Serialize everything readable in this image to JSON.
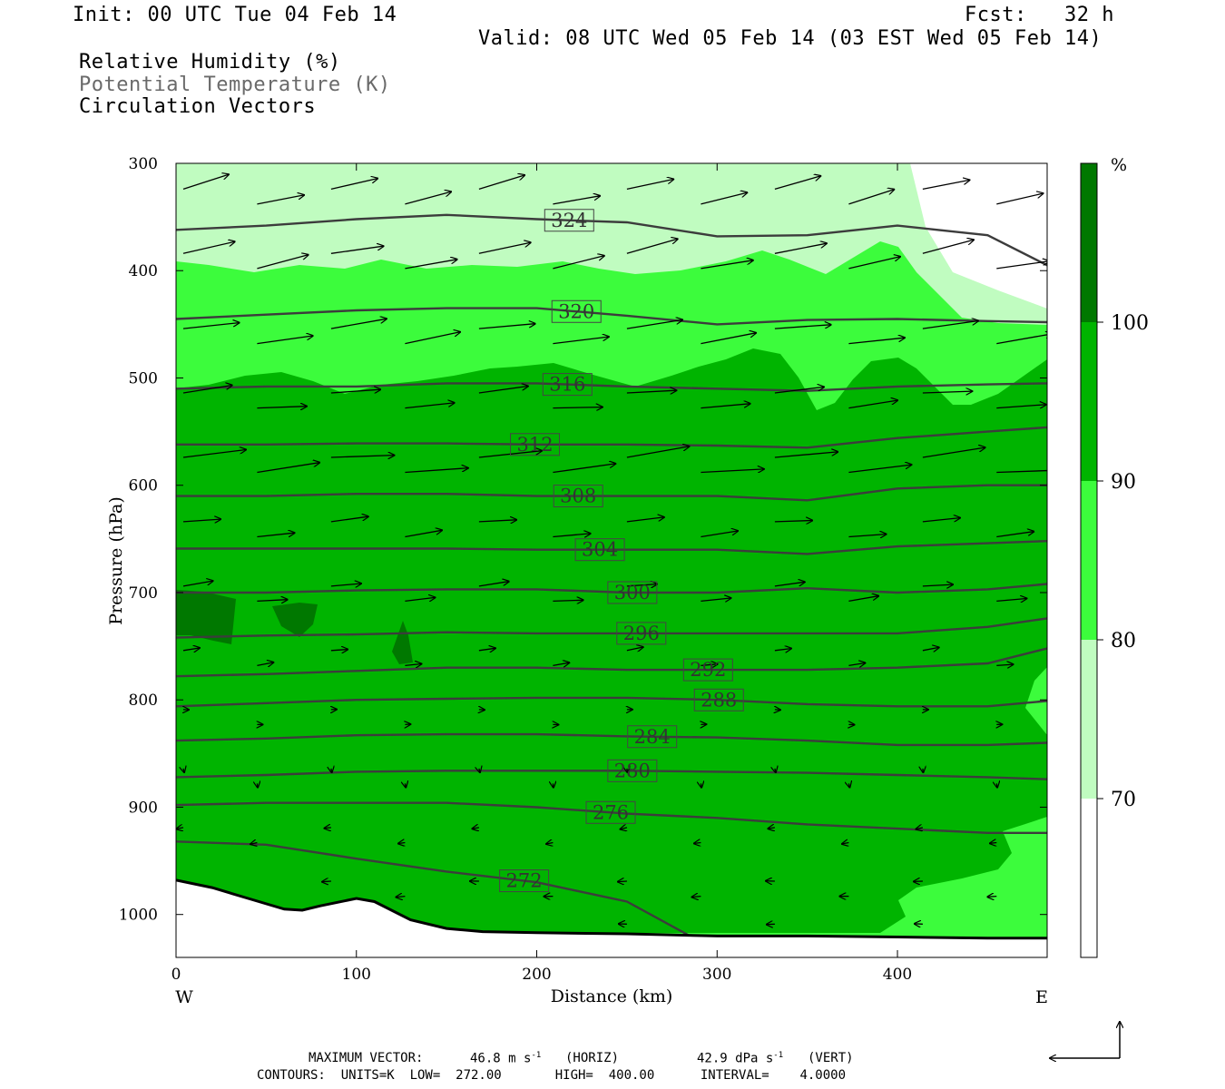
{
  "header": {
    "init": "Init: 00 UTC Tue 04 Feb 14",
    "fcst": "Fcst:   32 h",
    "valid": "Valid: 08 UTC Wed 05 Feb 14 (03 EST Wed 05 Feb 14)",
    "field1": "Relative Humidity (%)",
    "field2": "Potential Temperature (K)",
    "field3": "Circulation Vectors"
  },
  "footer": {
    "max_vector_label": "MAXIMUM VECTOR:",
    "max_vector_horiz": "46.8 m s",
    "horiz_tag": "(HORIZ)",
    "max_vector_vert": "42.9 dPa s",
    "vert_tag": "(VERT)",
    "contours": "CONTOURS:  UNITS=K  LOW=  272.00       HIGH=  400.00      INTERVAL=    4.0000"
  },
  "colors": {
    "rh_70_80": "#c0fcc0",
    "rh_80_90": "#3cfc3c",
    "rh_90_100": "#00b400",
    "rh_100_plus": "#007800",
    "theta_line": "#3c3c3c",
    "ground": "#ffffff"
  },
  "chart_data": {
    "type": "cross-section",
    "xlabel": "Distance (km)",
    "ylabel": "Pressure (hPa)",
    "x_ticks": [
      0,
      100,
      200,
      300,
      400
    ],
    "y_ticks": [
      300,
      400,
      500,
      600,
      700,
      800,
      900,
      1000
    ],
    "xlim": [
      0,
      483
    ],
    "ylim": [
      300,
      1040
    ],
    "left_end_label": "W",
    "right_end_label": "E",
    "colorbar": {
      "unit": "%",
      "levels": [
        70,
        80,
        90,
        100
      ],
      "range": [
        60,
        110
      ]
    },
    "theta_contours": [
      {
        "label": "324",
        "label_x": 218,
        "x": [
          0,
          50,
          100,
          150,
          200,
          250,
          300,
          350,
          400,
          450,
          483
        ],
        "p": [
          362,
          358,
          352,
          348,
          352,
          355,
          368,
          367,
          358,
          367,
          395
        ]
      },
      {
        "label": "320",
        "label_x": 222,
        "x": [
          0,
          50,
          100,
          150,
          200,
          250,
          300,
          350,
          400,
          450,
          483
        ],
        "p": [
          445,
          441,
          437,
          435,
          435,
          442,
          450,
          446,
          445,
          447,
          448
        ]
      },
      {
        "label": "316",
        "label_x": 217,
        "x": [
          0,
          50,
          100,
          150,
          200,
          250,
          300,
          350,
          400,
          450,
          483
        ],
        "p": [
          510,
          508,
          508,
          505,
          505,
          508,
          510,
          512,
          508,
          506,
          505
        ]
      },
      {
        "label": "312",
        "label_x": 199,
        "x": [
          0,
          50,
          100,
          150,
          200,
          250,
          300,
          350,
          400,
          450,
          483
        ],
        "p": [
          562,
          562,
          561,
          561,
          562,
          562,
          563,
          565,
          556,
          550,
          546
        ]
      },
      {
        "label": "308",
        "label_x": 223,
        "x": [
          0,
          50,
          100,
          150,
          200,
          250,
          300,
          350,
          400,
          450,
          483
        ],
        "p": [
          610,
          610,
          608,
          608,
          610,
          610,
          610,
          614,
          603,
          600,
          600
        ]
      },
      {
        "label": "304",
        "label_x": 235,
        "x": [
          0,
          50,
          100,
          150,
          200,
          250,
          300,
          350,
          400,
          450,
          483
        ],
        "p": [
          659,
          659,
          659,
          659,
          660,
          660,
          660,
          664,
          657,
          654,
          652
        ]
      },
      {
        "label": "300",
        "label_x": 253,
        "x": [
          0,
          50,
          100,
          150,
          200,
          250,
          300,
          350,
          400,
          450,
          483
        ],
        "p": [
          700,
          700,
          698,
          697,
          697,
          700,
          700,
          696,
          700,
          697,
          692
        ]
      },
      {
        "label": "296",
        "label_x": 258,
        "x": [
          0,
          50,
          100,
          150,
          200,
          250,
          300,
          350,
          400,
          450,
          483
        ],
        "p": [
          742,
          740,
          739,
          737,
          738,
          738,
          738,
          738,
          738,
          732,
          724
        ]
      },
      {
        "label": "292",
        "label_x": 295,
        "x": [
          0,
          50,
          100,
          150,
          200,
          250,
          300,
          350,
          400,
          450,
          483
        ],
        "p": [
          778,
          776,
          773,
          770,
          770,
          772,
          772,
          772,
          770,
          766,
          752
        ]
      },
      {
        "label": "288",
        "label_x": 301,
        "x": [
          0,
          50,
          100,
          150,
          200,
          250,
          300,
          350,
          400,
          450,
          483
        ],
        "p": [
          806,
          803,
          800,
          799,
          798,
          798,
          800,
          804,
          806,
          806,
          801
        ]
      },
      {
        "label": "284",
        "label_x": 264,
        "x": [
          0,
          50,
          100,
          150,
          200,
          250,
          300,
          350,
          400,
          450,
          483
        ],
        "p": [
          838,
          836,
          833,
          832,
          832,
          834,
          835,
          838,
          842,
          842,
          840
        ]
      },
      {
        "label": "280",
        "label_x": 253,
        "x": [
          0,
          50,
          100,
          150,
          200,
          250,
          300,
          350,
          400,
          450,
          483
        ],
        "p": [
          872,
          870,
          867,
          866,
          866,
          866,
          867,
          868,
          870,
          872,
          874
        ]
      },
      {
        "label": "276",
        "label_x": 241,
        "x": [
          0,
          50,
          100,
          150,
          200,
          250,
          300,
          350,
          400,
          450,
          483
        ],
        "p": [
          898,
          896,
          896,
          896,
          900,
          906,
          910,
          916,
          920,
          924,
          924
        ]
      },
      {
        "label": "272",
        "label_x": 193,
        "x": [
          0,
          50,
          100,
          150,
          200,
          250,
          285
        ],
        "p": [
          932,
          935,
          948,
          960,
          970,
          988,
          1020
        ]
      }
    ],
    "surface": {
      "x": [
        0,
        20,
        40,
        60,
        70,
        80,
        100,
        110,
        130,
        150,
        170,
        200,
        250,
        300,
        350,
        400,
        450,
        483
      ],
      "p": [
        968,
        975,
        985,
        995,
        996,
        992,
        985,
        988,
        1005,
        1013,
        1016,
        1017,
        1018,
        1020,
        1020,
        1021,
        1022,
        1022
      ]
    },
    "vector_scale": {
      "horizontal": "46.8 m s-1",
      "vertical": "42.9 dPa s-1"
    }
  }
}
